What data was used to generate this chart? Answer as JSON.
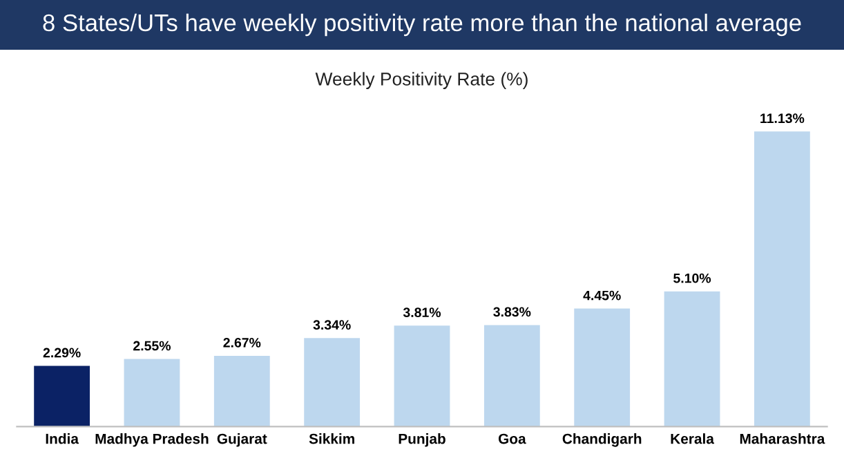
{
  "chart_data": {
    "type": "bar",
    "title": "8 States/UTs have weekly positivity rate more than the national average",
    "subtitle": "Weekly Positivity Rate (%)",
    "categories": [
      "India",
      "Madhya Pradesh",
      "Gujarat",
      "Sikkim",
      "Punjab",
      "Goa",
      "Chandigarh",
      "Kerala",
      "Maharashtra"
    ],
    "values": [
      2.29,
      2.55,
      2.67,
      3.34,
      3.81,
      3.83,
      4.45,
      5.1,
      11.13
    ],
    "value_labels": [
      "2.29%",
      "2.55%",
      "2.67%",
      "3.34%",
      "3.81%",
      "3.83%",
      "4.45%",
      "5.10%",
      "11.13%"
    ],
    "colors": [
      "#0b2265",
      "#bdd7ee",
      "#bdd7ee",
      "#bdd7ee",
      "#bdd7ee",
      "#bdd7ee",
      "#bdd7ee",
      "#bdd7ee",
      "#bdd7ee"
    ],
    "grid": false,
    "legend": false
  }
}
